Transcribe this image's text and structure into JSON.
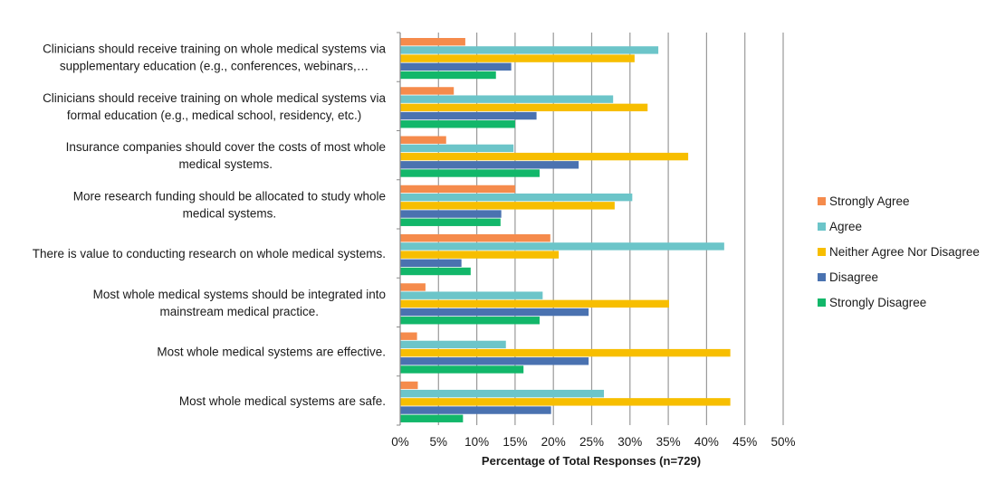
{
  "chart_data": {
    "type": "bar",
    "orientation": "horizontal",
    "title": "",
    "xlabel": "Percentage of Total Responses (n=729)",
    "ylabel": "",
    "xlim": [
      0,
      50
    ],
    "x_ticks": [
      "0%",
      "5%",
      "10%",
      "15%",
      "20%",
      "25%",
      "30%",
      "35%",
      "40%",
      "45%",
      "50%"
    ],
    "grid": "vertical",
    "legend_position": "right",
    "categories": [
      [
        "Clinicians should receive training on whole medical systems via",
        "supplementary education (e.g., conferences, webinars,…"
      ],
      [
        "Clinicians should receive training on whole medical systems via",
        "formal education (e.g., medical school, residency, etc.)"
      ],
      [
        "Insurance companies should cover the costs of most whole",
        "medical systems."
      ],
      [
        "More research funding should be allocated to study whole",
        "medical systems."
      ],
      [
        "There is value to conducting research on whole medical systems."
      ],
      [
        "Most whole medical systems should be integrated into",
        "mainstream medical practice."
      ],
      [
        "Most whole medical systems are effective."
      ],
      [
        "Most whole medical systems are safe."
      ]
    ],
    "series": [
      {
        "name": "Strongly Agree",
        "color": "#F58B4C",
        "values": [
          8.5,
          7.0,
          6.0,
          15.0,
          19.6,
          3.3,
          2.2,
          2.3
        ]
      },
      {
        "name": "Agree",
        "color": "#6CC5C9",
        "values": [
          33.7,
          27.8,
          14.8,
          30.3,
          42.3,
          18.6,
          13.8,
          26.6
        ]
      },
      {
        "name": "Neither Agree Nor Disagree",
        "color": "#F7BE00",
        "values": [
          30.6,
          32.3,
          37.6,
          28.0,
          20.7,
          35.1,
          43.1,
          43.1
        ]
      },
      {
        "name": "Disagree",
        "color": "#4A72B0",
        "values": [
          14.5,
          17.8,
          23.3,
          13.2,
          8.0,
          24.6,
          24.6,
          19.7
        ]
      },
      {
        "name": "Strongly Disagree",
        "color": "#12B76A",
        "values": [
          12.5,
          15.0,
          18.2,
          13.1,
          9.2,
          18.2,
          16.1,
          8.2
        ]
      }
    ]
  }
}
